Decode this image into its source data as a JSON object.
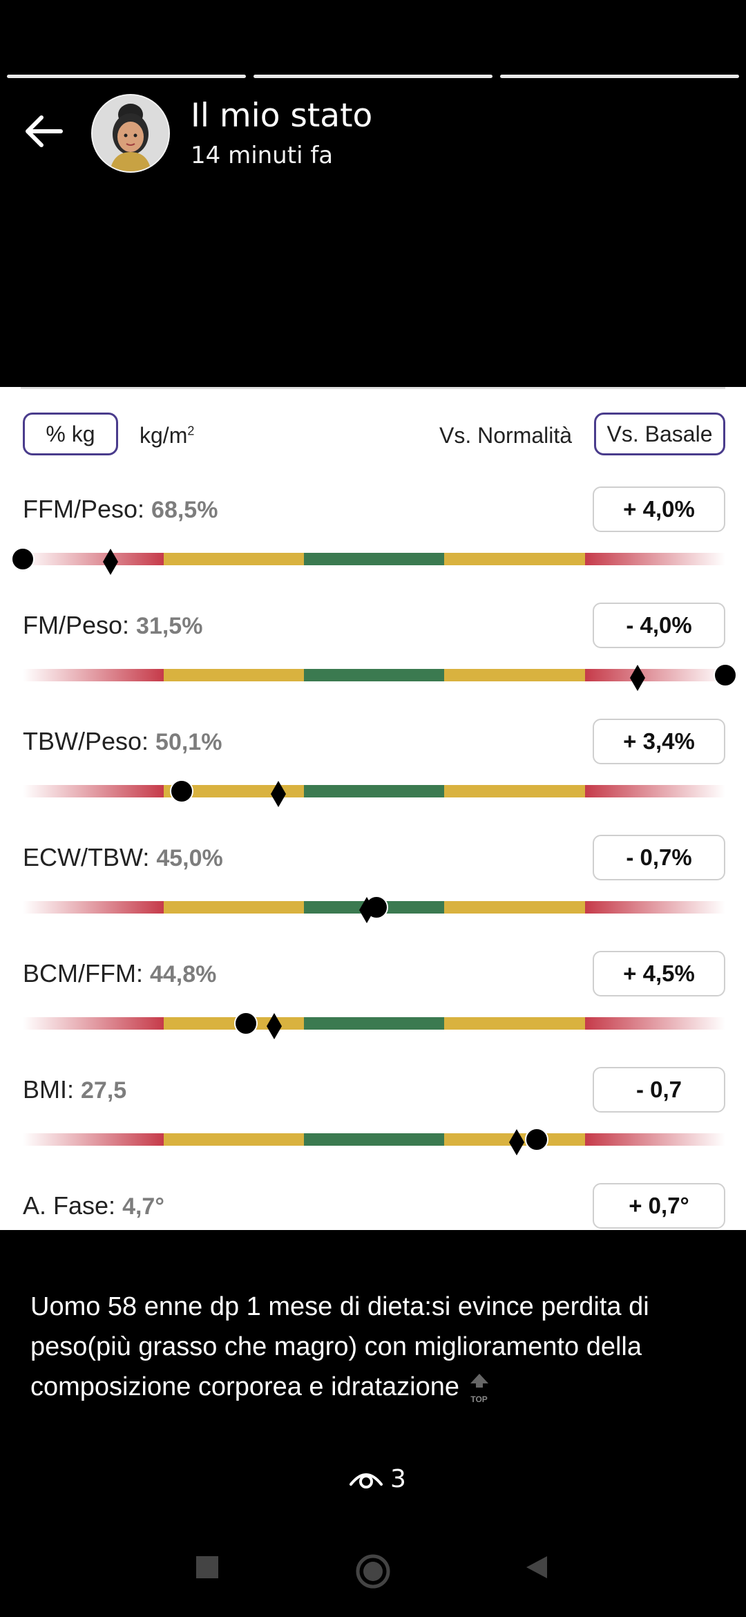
{
  "header": {
    "title": "Il mio stato",
    "subtitle": "14 minuti fa"
  },
  "progress": {
    "segments": 3,
    "active_index": 0
  },
  "panel": {
    "toggle_units": {
      "percent_kg": "% kg",
      "kg_m2_base": "kg/m",
      "kg_m2_sup": "2"
    },
    "toggle_compare": {
      "normal": "Vs. Normalità",
      "basal": "Vs. Basale"
    },
    "rows": [
      {
        "label": "FFM/Peso:",
        "value": "68,5%",
        "delta": "+ 4,0%",
        "dot": 0.0,
        "diamond": 0.125
      },
      {
        "label": "FM/Peso:",
        "value": "31,5%",
        "delta": "- 4,0%",
        "dot": 1.0,
        "diamond": 0.875
      },
      {
        "label": "TBW/Peso:",
        "value": "50,1%",
        "delta": "+ 3,4%",
        "dot": 0.226,
        "diamond": 0.364
      },
      {
        "label": "ECW/TBW:",
        "value": "45,0%",
        "delta": "- 0,7%",
        "dot": 0.503,
        "diamond": 0.49
      },
      {
        "label": "BCM/FFM:",
        "value": "44,8%",
        "delta": "+ 4,5%",
        "dot": 0.318,
        "diamond": 0.358
      },
      {
        "label": "BMI:",
        "value": "27,5",
        "delta": "- 0,7",
        "dot": 0.732,
        "diamond": 0.703
      },
      {
        "label": "A. Fase:",
        "value": "4,7°",
        "delta": "+ 0,7°"
      }
    ]
  },
  "caption": "Uomo 58 enne dp 1 mese di dieta:si evince perdita di peso(più grasso che magro) con miglioramento della composizione corporea e idratazione",
  "top_badge": "TOP",
  "views_count": "3",
  "colors": {
    "accent": "#4a3c8c",
    "red": "#c63b4a",
    "yellow": "#d9b23f",
    "green": "#3b7a50"
  }
}
